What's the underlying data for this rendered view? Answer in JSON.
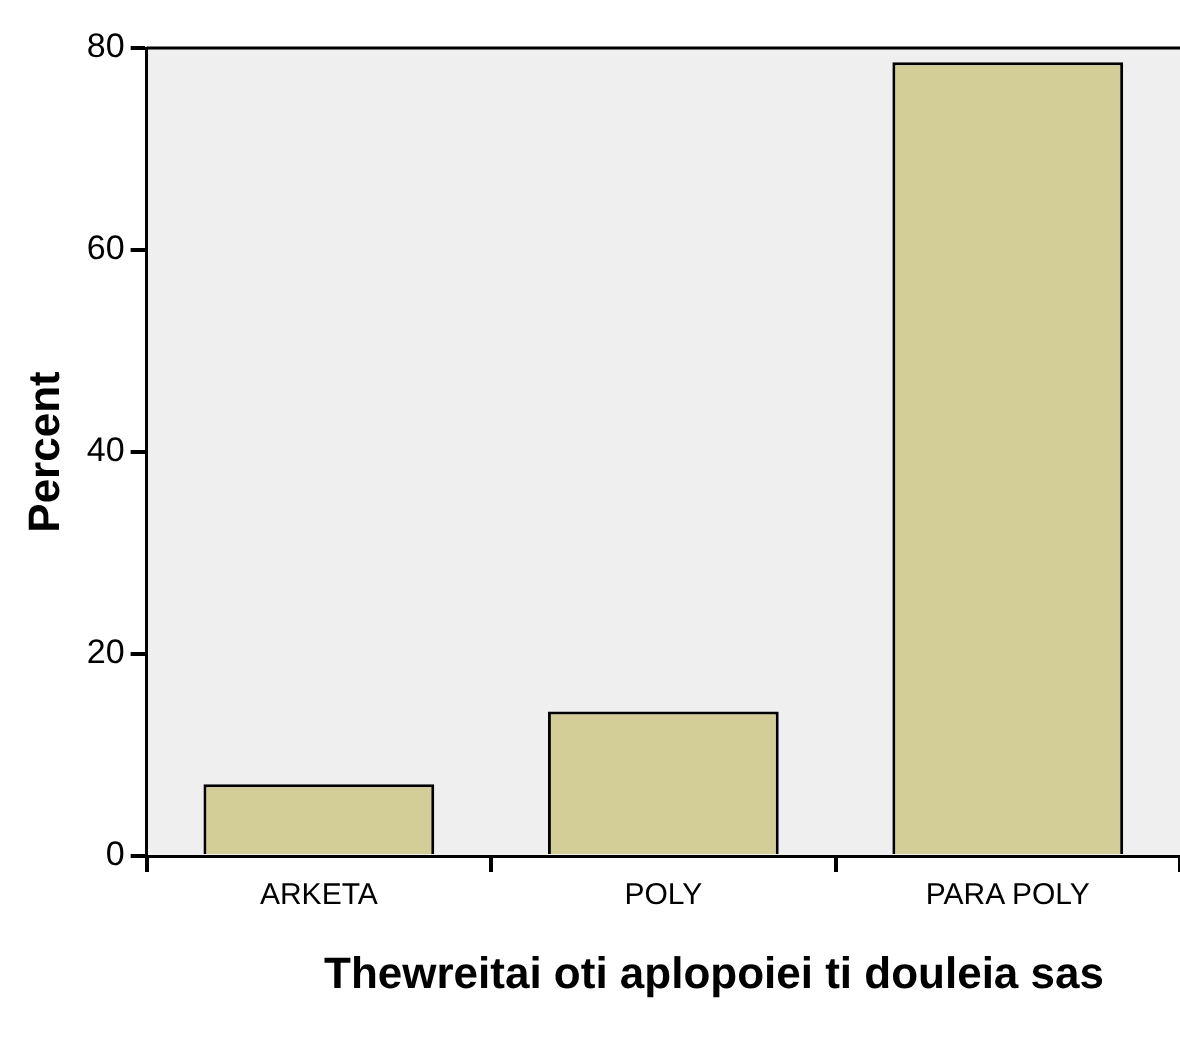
{
  "chart_data": {
    "type": "bar",
    "xlabel": "Thewreitai oti aplopoiei ti douleia sas",
    "ylabel": "Percent",
    "categories": [
      "ARKETA",
      "POLY",
      "PARA POLY"
    ],
    "values": [
      7.1,
      14.3,
      78.6
    ],
    "color": "#d3ce97",
    "ylim": [
      0,
      80
    ],
    "yticks": [
      0,
      20,
      40,
      60,
      80
    ]
  }
}
